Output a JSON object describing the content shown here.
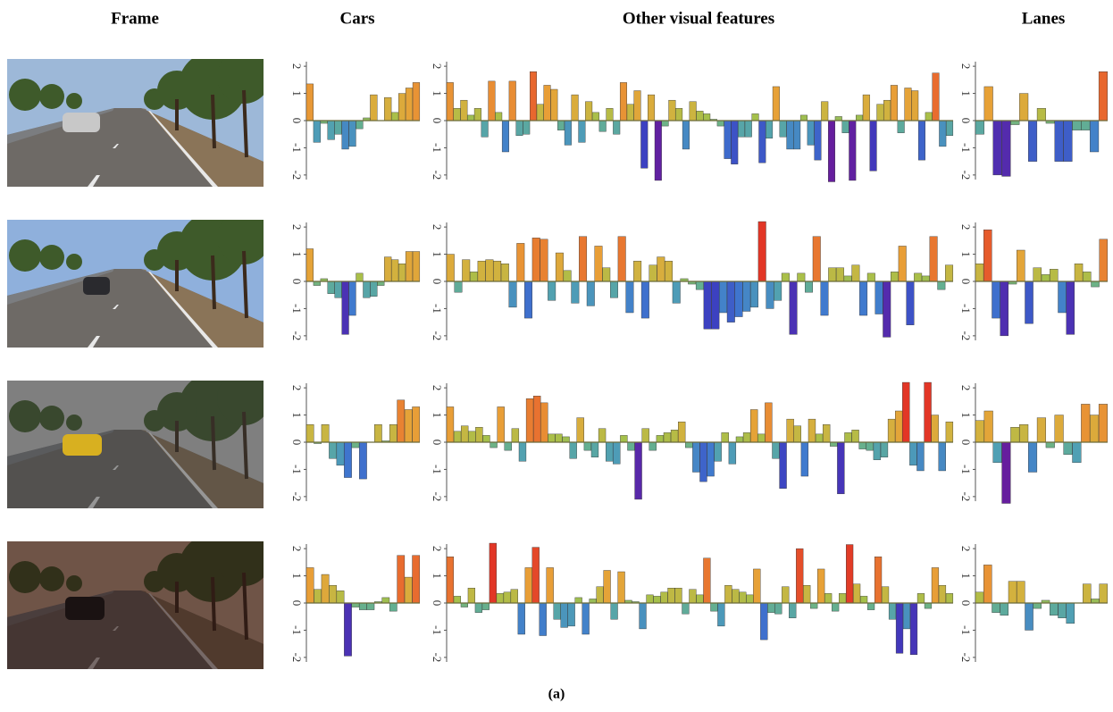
{
  "headers": [
    "Frame",
    "Cars",
    "Other visual features",
    "Lanes"
  ],
  "caption": "(a)",
  "colormap": [
    "#6a1b9a",
    "#3c3cc0",
    "#3f78cf",
    "#4f9fb5",
    "#66b08e",
    "#a6c04a",
    "#d2b23f",
    "#e8a037",
    "#e8682e",
    "#e02a24"
  ],
  "chart_data": [
    {
      "type": "bar",
      "ylim": [
        -2.3,
        2.3
      ],
      "yticks": [
        -2,
        -1,
        0,
        1,
        2
      ],
      "values": [
        1.35,
        -0.8,
        -0.1,
        -0.7,
        -0.5,
        -1.05,
        -0.95,
        -0.3,
        0.1,
        0.95,
        0,
        0.85,
        0.3,
        1.0,
        1.2,
        1.4
      ]
    },
    {
      "type": "bar",
      "ylim": [
        -2.3,
        2.3
      ],
      "yticks": [
        -2,
        -1,
        0,
        1,
        2
      ],
      "values": [
        1.4,
        0.45,
        0.75,
        0.2,
        0.45,
        -0.6,
        1.45,
        0.3,
        -1.15,
        1.45,
        -0.55,
        -0.5,
        1.8,
        0.6,
        1.3,
        1.15,
        -0.35,
        -0.9,
        0.95,
        -0.8,
        0.7,
        0.3,
        -0.4,
        0.45,
        -0.5,
        1.4,
        0.6,
        1.1,
        -1.75,
        0.95,
        -2.2,
        -0.2,
        0.75,
        0.45,
        -1.05,
        0.7,
        0.35,
        0.25,
        0.05,
        -0.2,
        -1.4,
        -1.6,
        -0.6,
        -0.6,
        0.25,
        -1.55,
        -0.65,
        1.25,
        -0.6,
        -1.05,
        -1.05,
        0.2,
        -0.9,
        -1.45,
        0.7,
        -2.25,
        0.15,
        -0.45,
        -2.2,
        0.2,
        0.95,
        -1.85,
        0.6,
        0.75,
        1.3,
        -0.45,
        1.2,
        1.1,
        -1.45,
        0.3,
        1.75,
        -0.95,
        -0.55
      ]
    },
    {
      "type": "bar",
      "ylim": [
        -2.3,
        2.3
      ],
      "yticks": [
        -2,
        -1,
        0,
        1,
        2
      ],
      "values": [
        -0.5,
        1.25,
        -2.0,
        -2.05,
        -0.15,
        1.0,
        -1.5,
        0.45,
        -0.1,
        -1.5,
        -1.5,
        -0.35,
        -0.35,
        -1.15,
        1.8
      ]
    },
    {
      "type": "bar",
      "ylim": [
        -2.3,
        2.3
      ],
      "yticks": [
        -2,
        -1,
        0,
        1,
        2
      ],
      "values": [
        1.2,
        -0.15,
        0.1,
        -0.45,
        -0.6,
        -1.95,
        -1.25,
        0.3,
        -0.6,
        -0.55,
        -0.15,
        0.9,
        0.8,
        0.65,
        1.1,
        1.1
      ]
    },
    {
      "type": "bar",
      "ylim": [
        -2.3,
        2.3
      ],
      "yticks": [
        -2,
        -1,
        0,
        1,
        2
      ],
      "values": [
        1.0,
        -0.4,
        0.8,
        0.35,
        0.75,
        0.8,
        0.75,
        0.65,
        -0.95,
        1.4,
        -1.35,
        1.6,
        1.55,
        -0.7,
        1.05,
        0.4,
        -0.8,
        1.65,
        -0.9,
        1.3,
        0.5,
        -0.6,
        1.65,
        -1.15,
        0.75,
        -1.35,
        0.6,
        0.9,
        0.75,
        -0.8,
        0.1,
        -0.1,
        -0.3,
        -1.75,
        -1.75,
        -1.15,
        -1.5,
        -1.3,
        -1.1,
        -0.95,
        2.2,
        -1.0,
        -0.7,
        0.3,
        -1.95,
        0.3,
        -0.4,
        1.65,
        -1.25,
        0.5,
        0.5,
        0.2,
        0.6,
        -1.25,
        0.3,
        -1.2,
        -2.05,
        0.35,
        1.3,
        -1.6,
        0.3,
        0.2,
        1.65,
        -0.3,
        0.6
      ]
    },
    {
      "type": "bar",
      "ylim": [
        -2.3,
        2.3
      ],
      "yticks": [
        -2,
        -1,
        0,
        1,
        2
      ],
      "values": [
        0.65,
        1.9,
        -1.35,
        -2.0,
        -0.1,
        1.15,
        -1.55,
        0.5,
        0.25,
        0.45,
        -1.15,
        -1.95,
        0.65,
        0.35,
        -0.2,
        1.55
      ]
    },
    {
      "type": "bar",
      "ylim": [
        -2.3,
        2.3
      ],
      "yticks": [
        -2,
        -1,
        0,
        1,
        2
      ],
      "values": [
        0.65,
        -0.05,
        0.65,
        -0.6,
        -0.85,
        -1.3,
        -0.2,
        -1.35,
        0,
        0.65,
        0.05,
        0.65,
        1.55,
        1.2,
        1.3
      ]
    },
    {
      "type": "bar",
      "ylim": [
        -2.3,
        2.3
      ],
      "yticks": [
        -2,
        -1,
        0,
        1,
        2
      ],
      "values": [
        1.3,
        0.4,
        0.6,
        0.4,
        0.55,
        0.25,
        -0.2,
        1.3,
        -0.3,
        0.5,
        -0.7,
        1.6,
        1.7,
        1.45,
        0.3,
        0.3,
        0.2,
        -0.6,
        0.9,
        -0.3,
        -0.55,
        0.5,
        -0.7,
        -0.8,
        0.25,
        -0.3,
        -2.1,
        0.5,
        -0.3,
        0.25,
        0.35,
        0.45,
        0.75,
        -0.2,
        -1.1,
        -1.45,
        -1.25,
        -0.7,
        0.35,
        -0.8,
        0.2,
        0.35,
        1.2,
        0.3,
        1.45,
        -0.6,
        -1.7,
        0.85,
        0.6,
        -1.25,
        0.85,
        0.3,
        0.65,
        -0.15,
        -1.9,
        0.35,
        0.45,
        -0.25,
        -0.3,
        -0.65,
        -0.55,
        0.85,
        1.15,
        2.2,
        -0.85,
        -1.05,
        2.2,
        1.0,
        -1.05,
        0.75
      ]
    },
    {
      "type": "bar",
      "ylim": [
        -2.3,
        2.3
      ],
      "yticks": [
        -2,
        -1,
        0,
        1,
        2
      ],
      "values": [
        0.8,
        1.15,
        -0.75,
        -2.25,
        0.55,
        0.65,
        -1.1,
        0.9,
        -0.2,
        1.0,
        -0.45,
        -0.75,
        1.4,
        1.0,
        1.4
      ]
    },
    {
      "type": "bar",
      "ylim": [
        -2.3,
        2.3
      ],
      "yticks": [
        -2,
        -1,
        0,
        1,
        2
      ],
      "values": [
        1.3,
        0.5,
        1.05,
        0.65,
        0.45,
        -1.95,
        -0.15,
        -0.25,
        -0.25,
        0.05,
        0.2,
        -0.3,
        1.75,
        0.95,
        1.75
      ]
    },
    {
      "type": "bar",
      "ylim": [
        -2.3,
        2.3
      ],
      "yticks": [
        -2,
        -1,
        0,
        1,
        2
      ],
      "values": [
        1.7,
        0.25,
        -0.15,
        0.55,
        -0.35,
        -0.25,
        2.2,
        0.35,
        0.4,
        0.5,
        -1.15,
        1.3,
        2.05,
        -1.2,
        1.3,
        -0.6,
        -0.9,
        -0.85,
        0.2,
        -1.15,
        0.15,
        0.6,
        1.2,
        -0.6,
        1.15,
        0.1,
        0.05,
        -0.95,
        0.3,
        0.25,
        0.4,
        0.55,
        0.55,
        -0.4,
        0.5,
        0.3,
        1.65,
        -0.3,
        -0.85,
        0.65,
        0.5,
        0.4,
        0.3,
        1.25,
        -1.35,
        -0.35,
        -0.4,
        0.6,
        -0.55,
        2.0,
        0.65,
        -0.2,
        1.25,
        0.35,
        -0.3,
        0.35,
        2.15,
        0.7,
        0.25,
        -0.25,
        1.7,
        0.6,
        -0.6,
        -1.85,
        -0.95,
        -1.9,
        0.35,
        -0.2,
        1.3,
        0.65,
        0.35
      ]
    },
    {
      "type": "bar",
      "ylim": [
        -2.3,
        2.3
      ],
      "yticks": [
        -2,
        -1,
        0,
        1,
        2
      ],
      "values": [
        0.4,
        1.4,
        -0.35,
        -0.45,
        0.8,
        0.8,
        -1.0,
        -0.2,
        0.1,
        -0.45,
        -0.55,
        -0.75,
        0,
        0.7,
        0.15,
        0.7
      ]
    }
  ]
}
